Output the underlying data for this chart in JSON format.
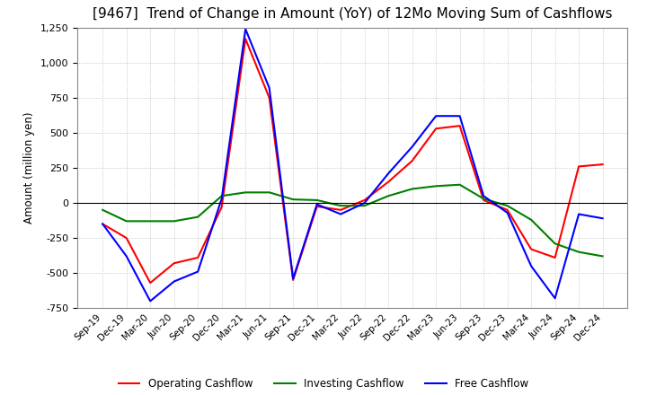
{
  "title": "[9467]  Trend of Change in Amount (YoY) of 12Mo Moving Sum of Cashflows",
  "ylabel": "Amount (million yen)",
  "x_labels": [
    "Sep-19",
    "Dec-19",
    "Mar-20",
    "Jun-20",
    "Sep-20",
    "Dec-20",
    "Mar-21",
    "Jun-21",
    "Sep-21",
    "Dec-21",
    "Mar-22",
    "Jun-22",
    "Sep-22",
    "Dec-22",
    "Mar-23",
    "Jun-23",
    "Sep-23",
    "Dec-23",
    "Mar-24",
    "Jun-24",
    "Sep-24",
    "Dec-24"
  ],
  "operating": [
    -150,
    -250,
    -570,
    -430,
    -390,
    -30,
    1170,
    750,
    -550,
    -25,
    -50,
    20,
    150,
    300,
    530,
    550,
    20,
    -50,
    -330,
    -390,
    260,
    275
  ],
  "investing": [
    -50,
    -130,
    -130,
    -130,
    -100,
    50,
    75,
    75,
    25,
    20,
    -20,
    -20,
    50,
    100,
    120,
    130,
    30,
    -20,
    -120,
    -290,
    -350,
    -380
  ],
  "free": [
    -150,
    -380,
    -700,
    -560,
    -490,
    30,
    1240,
    820,
    -540,
    -10,
    -80,
    0,
    210,
    400,
    620,
    620,
    50,
    -70,
    -450,
    -680,
    -80,
    -110
  ],
  "ylim": [
    -750,
    1250
  ],
  "yticks": [
    -750,
    -500,
    -250,
    0,
    250,
    500,
    750,
    1000,
    1250
  ],
  "op_color": "#ff0000",
  "inv_color": "#008000",
  "free_color": "#0000ff",
  "bg_color": "#ffffff",
  "plot_bg_color": "#ffffff",
  "grid_color": "#aaaaaa",
  "title_fontsize": 11,
  "legend_labels": [
    "Operating Cashflow",
    "Investing Cashflow",
    "Free Cashflow"
  ]
}
